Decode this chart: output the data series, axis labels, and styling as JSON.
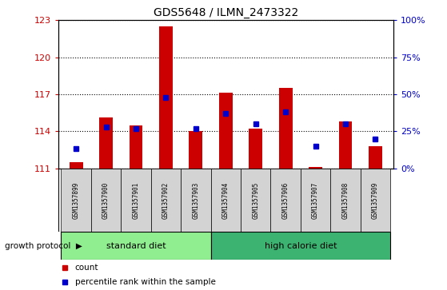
{
  "title": "GDS5648 / ILMN_2473322",
  "samples": [
    "GSM1357899",
    "GSM1357900",
    "GSM1357901",
    "GSM1357902",
    "GSM1357903",
    "GSM1357904",
    "GSM1357905",
    "GSM1357906",
    "GSM1357907",
    "GSM1357908",
    "GSM1357909"
  ],
  "counts": [
    111.5,
    115.1,
    114.5,
    122.5,
    114.0,
    117.1,
    114.2,
    117.5,
    111.1,
    114.8,
    112.8
  ],
  "percentiles": [
    13,
    28,
    27,
    48,
    27,
    37,
    30,
    38,
    15,
    30,
    20
  ],
  "ymin": 111,
  "ymax": 123,
  "yticks": [
    111,
    114,
    117,
    120,
    123
  ],
  "pmin": 0,
  "pmax": 100,
  "pticks": [
    0,
    25,
    50,
    75,
    100
  ],
  "ptick_labels": [
    "0%",
    "25%",
    "50%",
    "75%",
    "100%"
  ],
  "bar_color": "#cc0000",
  "dot_color": "#0000cc",
  "bar_width": 0.45,
  "group1_samples": 5,
  "group2_samples": 6,
  "group1_label": "standard diet",
  "group2_label": "high calorie diet",
  "group_label": "growth protocol",
  "group1_color": "#90ee90",
  "group2_color": "#3cb371",
  "tick_bg_color": "#d3d3d3",
  "left_tick_color": "#cc0000",
  "right_tick_color": "#0000cc",
  "legend_count_label": "count",
  "legend_pct_label": "percentile rank within the sample"
}
